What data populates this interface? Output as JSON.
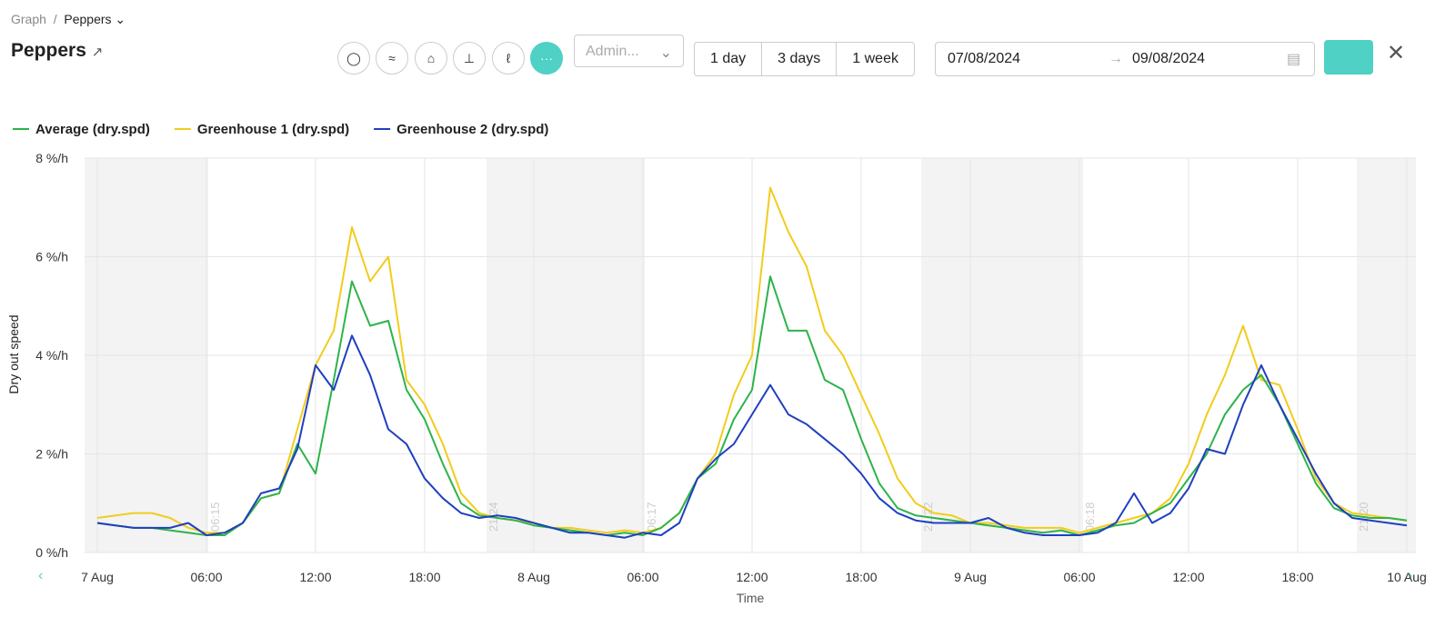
{
  "header": {
    "breadcrumb": [
      "Graph",
      "Peppers"
    ],
    "title": "Peppers",
    "aggregation_placeholder": "Admin...",
    "ranges": [
      "1 day",
      "3 days",
      "1 week"
    ],
    "date_from": "07/08/2024",
    "date_to": "09/08/2024"
  },
  "chart_data": {
    "type": "line",
    "xlabel": "Time",
    "ylabel": "Dry out speed",
    "x": [
      0,
      1,
      2,
      3,
      4,
      5,
      6,
      7,
      8,
      9,
      10,
      11,
      12,
      13,
      14,
      15,
      16,
      17,
      18,
      19,
      20,
      21,
      22,
      23,
      24,
      25,
      26,
      27,
      28,
      29,
      30,
      31,
      32,
      33,
      34,
      35,
      36,
      37,
      38,
      39,
      40,
      41,
      42,
      43,
      44,
      45,
      46,
      47,
      48,
      49,
      50,
      51,
      52,
      53,
      54,
      55,
      56,
      57,
      58,
      59,
      60,
      61,
      62,
      63,
      64,
      65,
      66,
      67,
      68,
      69,
      70,
      71,
      72
    ],
    "series": [
      {
        "name": "Average (dry.spd)",
        "color": "#2db34a",
        "values": [
          0.6,
          0.55,
          0.5,
          0.5,
          0.45,
          0.4,
          0.35,
          0.35,
          0.6,
          1.1,
          1.2,
          2.2,
          1.6,
          3.5,
          5.5,
          4.6,
          4.7,
          3.3,
          2.7,
          1.8,
          1.0,
          0.75,
          0.7,
          0.65,
          0.55,
          0.5,
          0.45,
          0.4,
          0.35,
          0.4,
          0.35,
          0.5,
          0.8,
          1.5,
          1.8,
          2.7,
          3.3,
          5.6,
          4.5,
          4.5,
          3.5,
          3.3,
          2.3,
          1.4,
          0.9,
          0.75,
          0.7,
          0.65,
          0.6,
          0.55,
          0.5,
          0.45,
          0.4,
          0.45,
          0.35,
          0.45,
          0.55,
          0.6,
          0.8,
          1.0,
          1.5,
          2.0,
          2.8,
          3.3,
          3.6,
          3.0,
          2.2,
          1.4,
          0.9,
          0.75,
          0.7,
          0.7,
          0.65
        ]
      },
      {
        "name": "Greenhouse 1 (dry.spd)",
        "color": "#f2cc1c",
        "values": [
          0.7,
          0.75,
          0.8,
          0.8,
          0.7,
          0.5,
          0.4,
          0.4,
          0.6,
          1.1,
          1.2,
          2.5,
          3.8,
          4.5,
          6.6,
          5.5,
          6.0,
          3.5,
          3.0,
          2.2,
          1.2,
          0.8,
          0.7,
          0.65,
          0.6,
          0.5,
          0.5,
          0.45,
          0.4,
          0.45,
          0.4,
          0.5,
          0.8,
          1.5,
          2.0,
          3.2,
          4.0,
          7.4,
          6.5,
          5.8,
          4.5,
          4.0,
          3.2,
          2.4,
          1.5,
          1.0,
          0.8,
          0.75,
          0.6,
          0.6,
          0.55,
          0.5,
          0.5,
          0.5,
          0.4,
          0.5,
          0.6,
          0.7,
          0.8,
          1.1,
          1.8,
          2.8,
          3.6,
          4.6,
          3.5,
          3.4,
          2.5,
          1.5,
          1.0,
          0.8,
          0.75,
          0.7,
          0.65
        ]
      },
      {
        "name": "Greenhouse 2 (dry.spd)",
        "color": "#1f3fbf",
        "values": [
          0.6,
          0.55,
          0.5,
          0.5,
          0.5,
          0.6,
          0.35,
          0.4,
          0.6,
          1.2,
          1.3,
          2.1,
          3.8,
          3.3,
          4.4,
          3.6,
          2.5,
          2.2,
          1.5,
          1.1,
          0.8,
          0.7,
          0.75,
          0.7,
          0.6,
          0.5,
          0.4,
          0.4,
          0.35,
          0.3,
          0.4,
          0.35,
          0.6,
          1.5,
          1.9,
          2.2,
          2.8,
          3.4,
          2.8,
          2.6,
          2.3,
          2.0,
          1.6,
          1.1,
          0.8,
          0.65,
          0.6,
          0.6,
          0.6,
          0.7,
          0.5,
          0.4,
          0.35,
          0.35,
          0.35,
          0.4,
          0.6,
          1.2,
          0.6,
          0.8,
          1.3,
          2.1,
          2.0,
          3.0,
          3.8,
          3.0,
          2.3,
          1.6,
          1.0,
          0.7,
          0.65,
          0.6,
          0.55
        ]
      }
    ],
    "xlim": [
      -0.7,
      72.5
    ],
    "xticks": [
      {
        "value": 0,
        "label": "7 Aug"
      },
      {
        "value": 6,
        "label": "06:00"
      },
      {
        "value": 12,
        "label": "12:00"
      },
      {
        "value": 18,
        "label": "18:00"
      },
      {
        "value": 24,
        "label": "8 Aug"
      },
      {
        "value": 30,
        "label": "06:00"
      },
      {
        "value": 36,
        "label": "12:00"
      },
      {
        "value": 42,
        "label": "18:00"
      },
      {
        "value": 48,
        "label": "9 Aug"
      },
      {
        "value": 54,
        "label": "06:00"
      },
      {
        "value": 60,
        "label": "12:00"
      },
      {
        "value": 66,
        "label": "18:00"
      },
      {
        "value": 72,
        "label": "10 Aug"
      }
    ],
    "ylim": [
      0,
      8
    ],
    "yticks": [
      {
        "value": 0,
        "label": "0 %/h"
      },
      {
        "value": 2,
        "label": "2 %/h"
      },
      {
        "value": 4,
        "label": "4 %/h"
      },
      {
        "value": 6,
        "label": "6 %/h"
      },
      {
        "value": 8,
        "label": "8 %/h"
      }
    ],
    "grid": true,
    "sun_events": [
      {
        "x": 6.1,
        "label": "06:15"
      },
      {
        "x": 21.4,
        "label": "21:24"
      },
      {
        "x": 30.1,
        "label": "06:17"
      },
      {
        "x": 45.3,
        "label": "21:22"
      },
      {
        "x": 54.2,
        "label": "06:18"
      },
      {
        "x": 69.25,
        "label": "21:20"
      }
    ]
  }
}
